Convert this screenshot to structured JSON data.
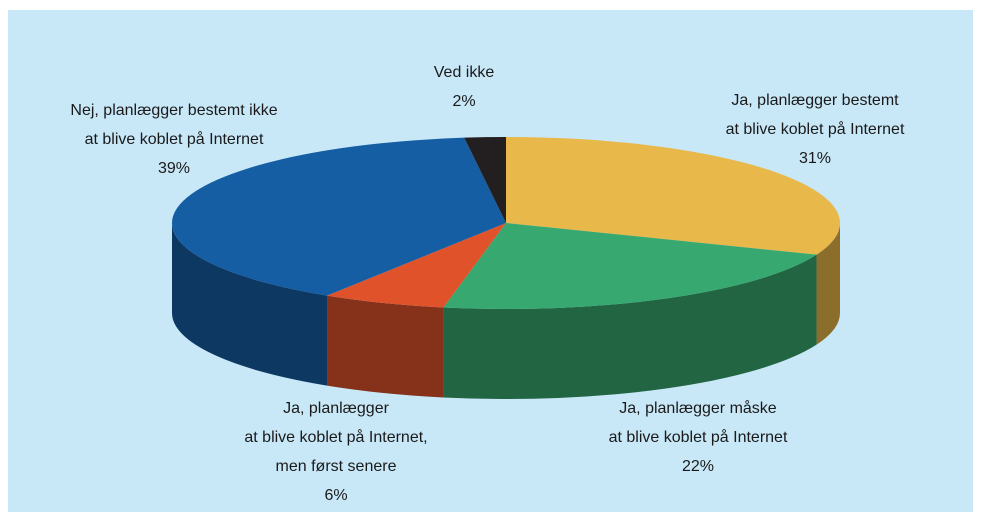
{
  "chart_data": {
    "type": "pie3d",
    "categories": [
      "Ja, planlægger bestemt\nat blive koblet på Internet",
      "Ja, planlægger måske\nat blive koblet på Internet",
      "Ja, planlægger\nat blive koblet på Internet,\nmen først senere",
      "Nej, planlægger bestemt ikke\nat blive koblet på Internet",
      "Ved ikke"
    ],
    "values": [
      31,
      22,
      6,
      39,
      2
    ],
    "value_labels": [
      "31%",
      "22%",
      "6%",
      "39%",
      "2%"
    ],
    "colors": [
      "#e8b84a",
      "#37a86f",
      "#e0522a",
      "#165ea3",
      "#231f20"
    ]
  }
}
